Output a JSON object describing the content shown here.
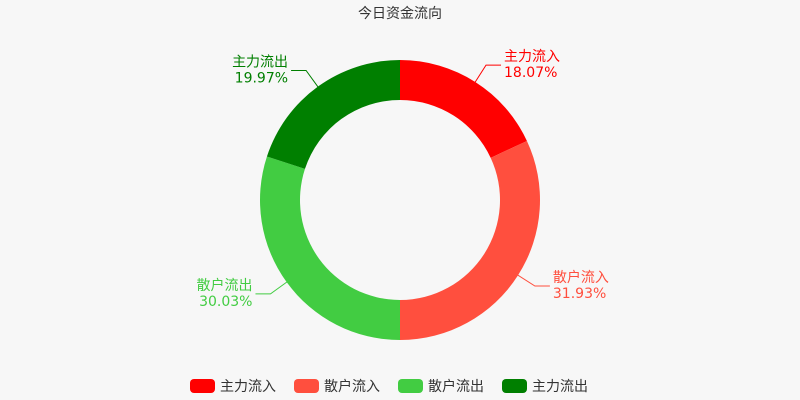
{
  "chart_data": {
    "type": "pie",
    "title": "今日资金流向",
    "donut": true,
    "categories": [
      "主力流入",
      "散户流入",
      "散户流出",
      "主力流出"
    ],
    "values": [
      18.07,
      31.93,
      30.03,
      19.97
    ],
    "value_labels": [
      "18.07%",
      "31.93%",
      "30.03%",
      "19.97%"
    ],
    "colors": [
      "#ff0000",
      "#ff4f3e",
      "#42cc42",
      "#007f00"
    ],
    "legend": "bottom"
  }
}
